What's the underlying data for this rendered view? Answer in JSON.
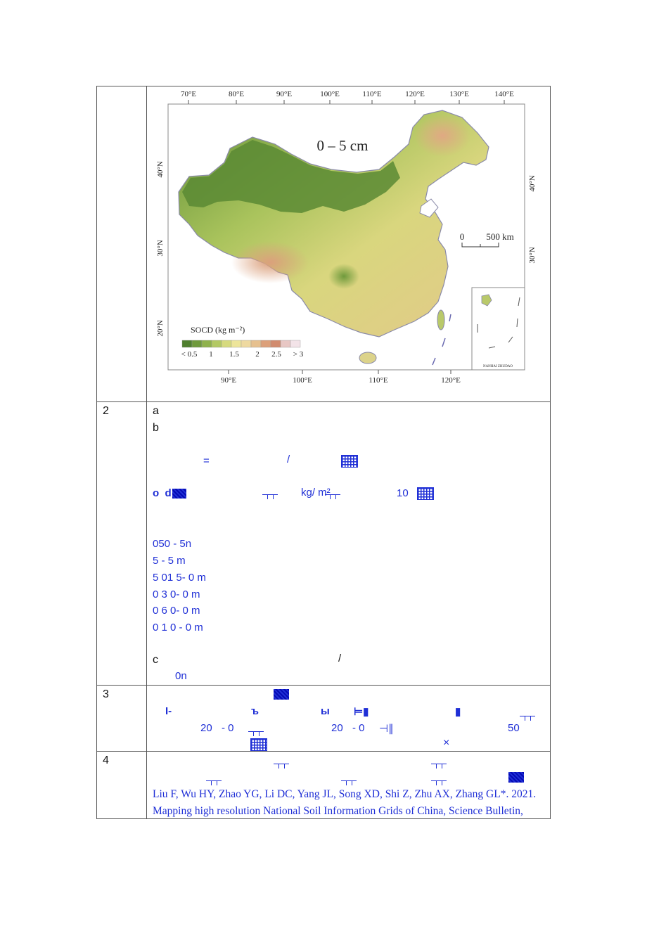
{
  "rows": [
    {
      "num": ""
    },
    {
      "num": "2"
    },
    {
      "num": "3"
    },
    {
      "num": "4"
    }
  ],
  "map": {
    "top_lon_labels": [
      "70°E",
      "80°E",
      "90°E",
      "100°E",
      "110°E",
      "120°E",
      "130°E",
      "140°E"
    ],
    "bottom_lon_labels": [
      "90°E",
      "100°E",
      "110°E",
      "120°E"
    ],
    "left_lat_labels": [
      "40°N",
      "30°N",
      "20°N"
    ],
    "right_lat_labels": [
      "40°N",
      "30°N"
    ],
    "depth_title": "0 – 5 cm",
    "scale_zero": "0",
    "scale_label": "500 km",
    "legend_title": "SOCD (kg m⁻²)",
    "legend_ticks": [
      "< 0.5",
      "1",
      "1.5",
      "2",
      "2.5",
      "> 3"
    ],
    "legend_colors": [
      "#4f7f2e",
      "#6f9a3c",
      "#8fb24c",
      "#b3c964",
      "#d6da7e",
      "#ede59a",
      "#eed9a0",
      "#e6c08e",
      "#dca07a",
      "#d18b6e",
      "#e8c7c4",
      "#f3e3e8"
    ],
    "inset_label": "NANHAI ZHUDAO"
  },
  "row2": {
    "a": "a",
    "b": "b",
    "eq": "=",
    "slash": "/",
    "unit": "kg/ m²",
    "ten": "10",
    "depths": [
      "050  - 5n",
      "5      - 5  m",
      "5   01  5- 0  m",
      "0    3  0- 0  m",
      "0      6  0- 0   m",
      "0        1  0  - 0   m"
    ],
    "c": "c",
    "slash2": "/",
    "c_tail": "0n"
  },
  "row3": {
    "l1": "I-",
    "b1": "ъ",
    "b2": "ы",
    "l2_1": "20",
    "l2_2": "- 0",
    "l2_3": "20",
    "l2_4": "- 0",
    "fifty": "50",
    "x": "×"
  },
  "row4": {
    "citation_line1": "Liu F, Wu HY, Zhao YG, Li DC, Yang JL, Song XD, Shi Z, Zhu AX, Zhang GL*. 2021.",
    "citation_line2": "Mapping high resolution National Soil Information Grids of China, Science Bulletin,"
  }
}
